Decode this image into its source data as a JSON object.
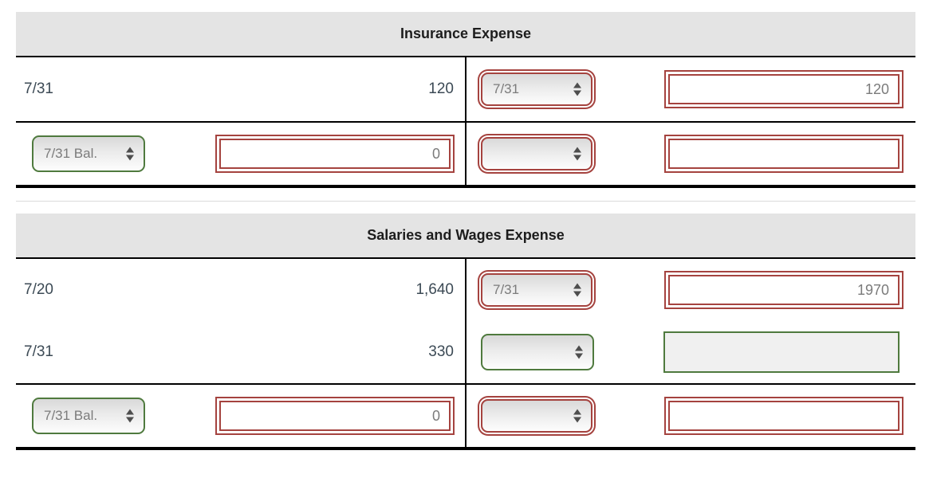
{
  "colors": {
    "incorrect_red": "#a5433f",
    "correct_green": "#4f7a3e",
    "header_bg": "#e4e4e4",
    "rule_black": "#000000",
    "static_text": "#3c4a55",
    "control_text": "#7b7b7b"
  },
  "accounts": {
    "insurance": {
      "title": "Insurance Expense",
      "entry": {
        "debit_date": "7/31",
        "debit_amount": "120",
        "credit_date_value": "7/31",
        "credit_amount_value": "120"
      },
      "balance": {
        "debit_date_value": "7/31 Bal.",
        "debit_amount_value": "0",
        "credit_date_value": "",
        "credit_amount_value": ""
      }
    },
    "salaries": {
      "title": "Salaries and Wages Expense",
      "entries": [
        {
          "debit_date": "7/20",
          "debit_amount": "1,640",
          "credit_date_value": "7/31",
          "credit_amount_value": "1970"
        },
        {
          "debit_date": "7/31",
          "debit_amount": "330",
          "credit_date_value": "",
          "credit_amount_value": ""
        }
      ],
      "balance": {
        "debit_date_value": "7/31 Bal.",
        "debit_amount_value": "0",
        "credit_date_value": "",
        "credit_amount_value": ""
      }
    }
  }
}
